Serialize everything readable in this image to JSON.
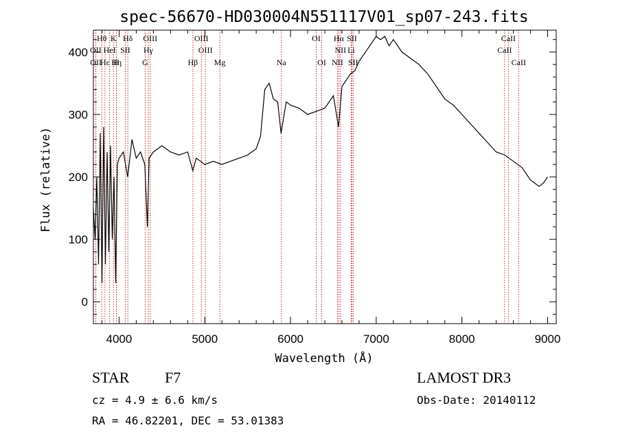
{
  "chart_data": {
    "type": "line",
    "title": "spec-56670-HD030004N551117V01_sp07-243.fits",
    "xlabel": "Wavelength (Å)",
    "ylabel": "Flux (relative)",
    "xlim": [
      3700,
      9100
    ],
    "ylim": [
      -35,
      435
    ],
    "x_ticks": [
      4000,
      5000,
      6000,
      7000,
      8000,
      9000
    ],
    "y_ticks": [
      0,
      100,
      200,
      300,
      400
    ],
    "series": [
      {
        "x": [
          3700,
          3720,
          3740,
          3760,
          3780,
          3800,
          3820,
          3840,
          3860,
          3880,
          3900,
          3920,
          3940,
          3960,
          3980,
          4000,
          4050,
          4100,
          4150,
          4200,
          4250,
          4300,
          4330,
          4350,
          4400,
          4500,
          4600,
          4700,
          4800,
          4860,
          4900,
          5000,
          5100,
          5200,
          5300,
          5400,
          5500,
          5600,
          5650,
          5700,
          5750,
          5800,
          5850,
          5890,
          5950,
          6000,
          6100,
          6200,
          6300,
          6400,
          6500,
          6560,
          6600,
          6650,
          6700,
          6750,
          6800,
          6900,
          7000,
          7050,
          7100,
          7150,
          7200,
          7300,
          7400,
          7500,
          7600,
          7700,
          7800,
          7900,
          8000,
          8100,
          8200,
          8300,
          8400,
          8500,
          8600,
          8700,
          8750,
          8800,
          8850,
          8900,
          8950,
          9000
        ],
        "y": [
          150,
          100,
          200,
          60,
          270,
          30,
          280,
          60,
          240,
          80,
          250,
          100,
          200,
          30,
          220,
          230,
          240,
          200,
          260,
          230,
          240,
          220,
          120,
          230,
          240,
          250,
          240,
          235,
          240,
          210,
          230,
          220,
          225,
          220,
          225,
          230,
          235,
          245,
          265,
          340,
          350,
          325,
          320,
          270,
          320,
          315,
          310,
          300,
          305,
          310,
          330,
          280,
          345,
          355,
          365,
          370,
          385,
          405,
          425,
          420,
          425,
          410,
          420,
          400,
          390,
          380,
          365,
          345,
          325,
          315,
          300,
          285,
          270,
          255,
          240,
          235,
          225,
          215,
          205,
          195,
          190,
          185,
          190,
          200
        ]
      }
    ],
    "lines_row1": [
      {
        "label": "Hθ",
        "x": 3798
      },
      {
        "label": "K",
        "x": 3934
      },
      {
        "label": "Hδ",
        "x": 4102
      },
      {
        "label": "OIII",
        "x": 4363
      },
      {
        "label": "OIII",
        "x": 4959
      },
      {
        "label": "OI",
        "x": 6300
      },
      {
        "label": "Hα",
        "x": 6563
      },
      {
        "label": "SII",
        "x": 6717
      },
      {
        "label": "CaII",
        "x": 8542
      }
    ],
    "lines_row2": [
      {
        "label": "OII",
        "x": 3727
      },
      {
        "label": "HeI",
        "x": 3889
      },
      {
        "label": "SII",
        "x": 4072
      },
      {
        "label": "Hγ",
        "x": 4341
      },
      {
        "label": "OIII",
        "x": 5007
      },
      {
        "label": "NII",
        "x": 6583
      },
      {
        "label": "Li",
        "x": 6708
      },
      {
        "label": "CaII",
        "x": 8498
      }
    ],
    "lines_row3": [
      {
        "label": "OII",
        "x": 3729
      },
      {
        "label": "Hε",
        "x": 3835
      },
      {
        "label": "Hη",
        "x": 3970
      },
      {
        "label": "H",
        "x": 3968
      },
      {
        "label": "G",
        "x": 4304
      },
      {
        "label": "Hβ",
        "x": 4861
      },
      {
        "label": "Mg",
        "x": 5175
      },
      {
        "label": "Na",
        "x": 5893
      },
      {
        "label": "OI",
        "x": 6364
      },
      {
        "label": "NII",
        "x": 6548
      },
      {
        "label": "SII",
        "x": 6731
      },
      {
        "label": "CaII",
        "x": 8662
      }
    ]
  },
  "info": {
    "class": "STAR",
    "subclass": "F7",
    "survey": "LAMOST DR3",
    "cz": "cz = 4.9 ± 6.6 km/s",
    "obsdate": "Obs-Date: 20140112",
    "radec": "RA =  46.82201, DEC =  53.01383"
  },
  "colors": {
    "spectrum": "#000000",
    "line_markers": "#cc2222"
  }
}
